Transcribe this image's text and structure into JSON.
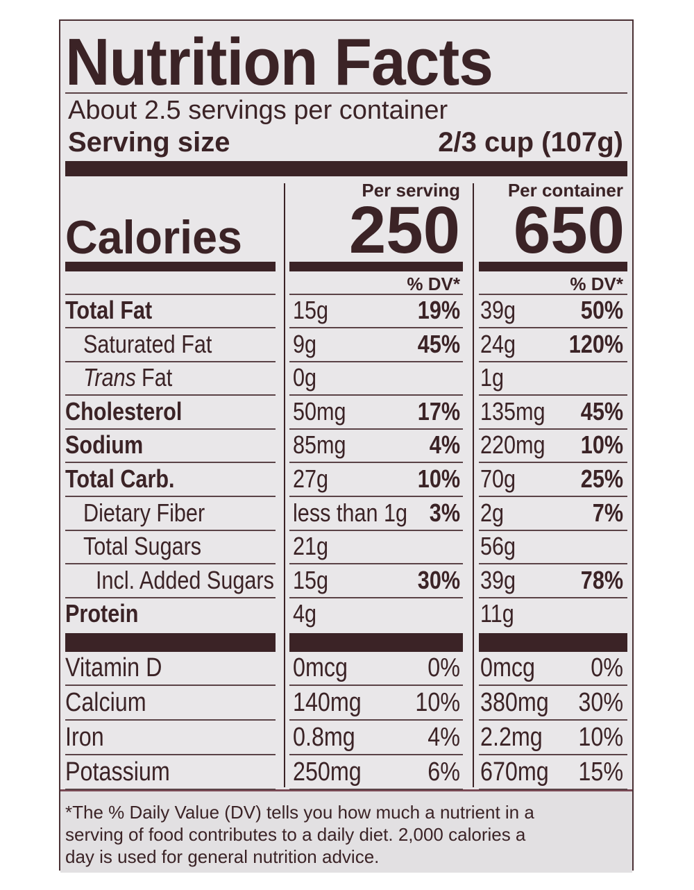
{
  "title": "Nutrition Facts",
  "servings": "About 2.5 servings per container",
  "serving_size": {
    "label": "Serving size",
    "value": "2/3 cup (107g)"
  },
  "calories": {
    "label": "Calories",
    "per_serving": {
      "heading": "Per serving",
      "value": "250",
      "dv_heading": "% DV*"
    },
    "per_container": {
      "heading": "Per container",
      "value": "650",
      "dv_heading": "% DV*"
    }
  },
  "nutrients": [
    {
      "name": "Total Fat",
      "style": "bold",
      "serving_amount": "15g",
      "serving_dv": "19%",
      "container_amount": "39g",
      "container_dv": "50%"
    },
    {
      "name": "Saturated Fat",
      "style": "indent",
      "serving_amount": "9g",
      "serving_dv": "45%",
      "container_amount": "24g",
      "container_dv": "120%"
    },
    {
      "name_italic": "Trans",
      "name": "Fat",
      "style": "indent",
      "serving_amount": "0g",
      "container_amount": "1g"
    },
    {
      "name": "Cholesterol",
      "style": "bold",
      "serving_amount": "50mg",
      "serving_dv": "17%",
      "container_amount": "135mg",
      "container_dv": "45%"
    },
    {
      "name": "Sodium",
      "style": "bold",
      "serving_amount": "85mg",
      "serving_dv": "4%",
      "container_amount": "220mg",
      "container_dv": "10%"
    },
    {
      "name": "Total Carb.",
      "style": "bold",
      "serving_amount": "27g",
      "serving_dv": "10%",
      "container_amount": "70g",
      "container_dv": "25%"
    },
    {
      "name": "Dietary Fiber",
      "style": "indent",
      "serving_amount": "less than 1g",
      "serving_dv": "3%",
      "container_amount": "2g",
      "container_dv": "7%"
    },
    {
      "name": "Total Sugars",
      "style": "indent",
      "serving_amount": "21g",
      "container_amount": "56g"
    },
    {
      "name": "Incl. Added Sugars",
      "style": "indent2",
      "serving_amount": "15g",
      "serving_dv": "30%",
      "container_amount": "39g",
      "container_dv": "78%"
    },
    {
      "name": "Protein",
      "style": "bold",
      "serving_amount": "4g",
      "container_amount": "11g"
    }
  ],
  "vitamins": [
    {
      "name": "Vitamin D",
      "serving_amount": "0mcg",
      "serving_dv": "0%",
      "container_amount": "0mcg",
      "container_dv": "0%"
    },
    {
      "name": "Calcium",
      "serving_amount": "140mg",
      "serving_dv": "10%",
      "container_amount": "380mg",
      "container_dv": "30%"
    },
    {
      "name": "Iron",
      "serving_amount": "0.8mg",
      "serving_dv": "4%",
      "container_amount": "2.2mg",
      "container_dv": "10%"
    },
    {
      "name": "Potassium",
      "serving_amount": "250mg",
      "serving_dv": "6%",
      "container_amount": "670mg",
      "container_dv": "15%"
    }
  ],
  "footnote": [
    "*The % Daily Value (DV) tells you how much a nutrient in a",
    "serving of food contributes to a daily diet. 2,000 calories a",
    "day is used for general nutrition advice."
  ]
}
